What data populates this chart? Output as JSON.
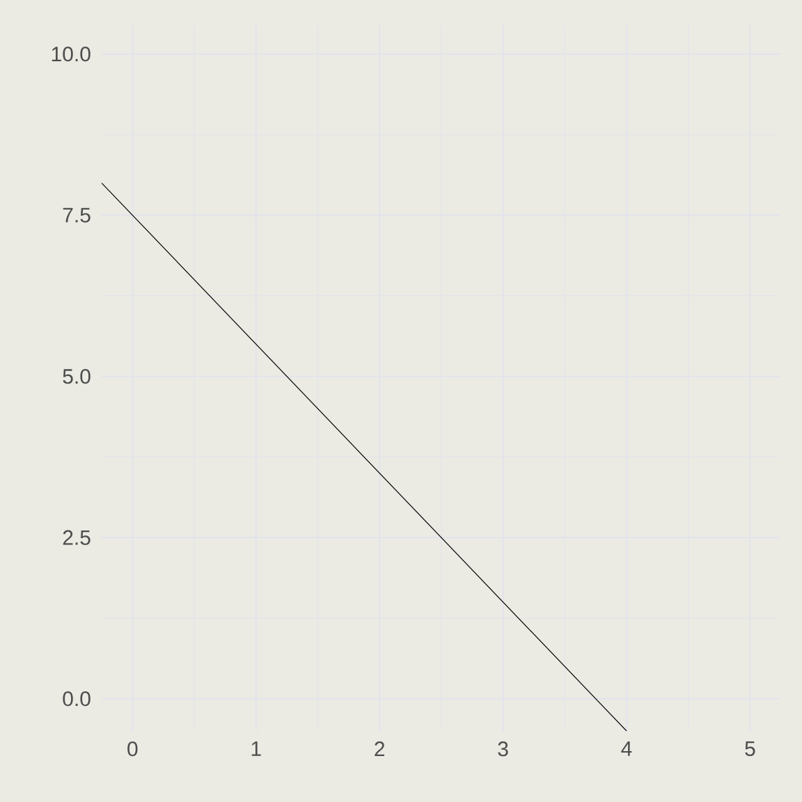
{
  "chart_data": {
    "type": "line",
    "x": [
      -0.25,
      4
    ],
    "series": [
      {
        "color": "#000000",
        "values": [
          8,
          -0.5
        ]
      }
    ],
    "xlim": [
      -0.25,
      5.24
    ],
    "ylim": [
      -0.5,
      10.45
    ],
    "xticks": [
      0,
      1,
      2,
      3,
      4,
      5
    ],
    "yticks": [
      {
        "value": 0,
        "label": "0.0"
      },
      {
        "value": 2.5,
        "label": "2.5"
      },
      {
        "value": 5,
        "label": "5.0"
      },
      {
        "value": 7.5,
        "label": "7.5"
      },
      {
        "value": 10,
        "label": "10.0"
      }
    ],
    "grid": true,
    "marker": "none",
    "line_style": "solid"
  }
}
